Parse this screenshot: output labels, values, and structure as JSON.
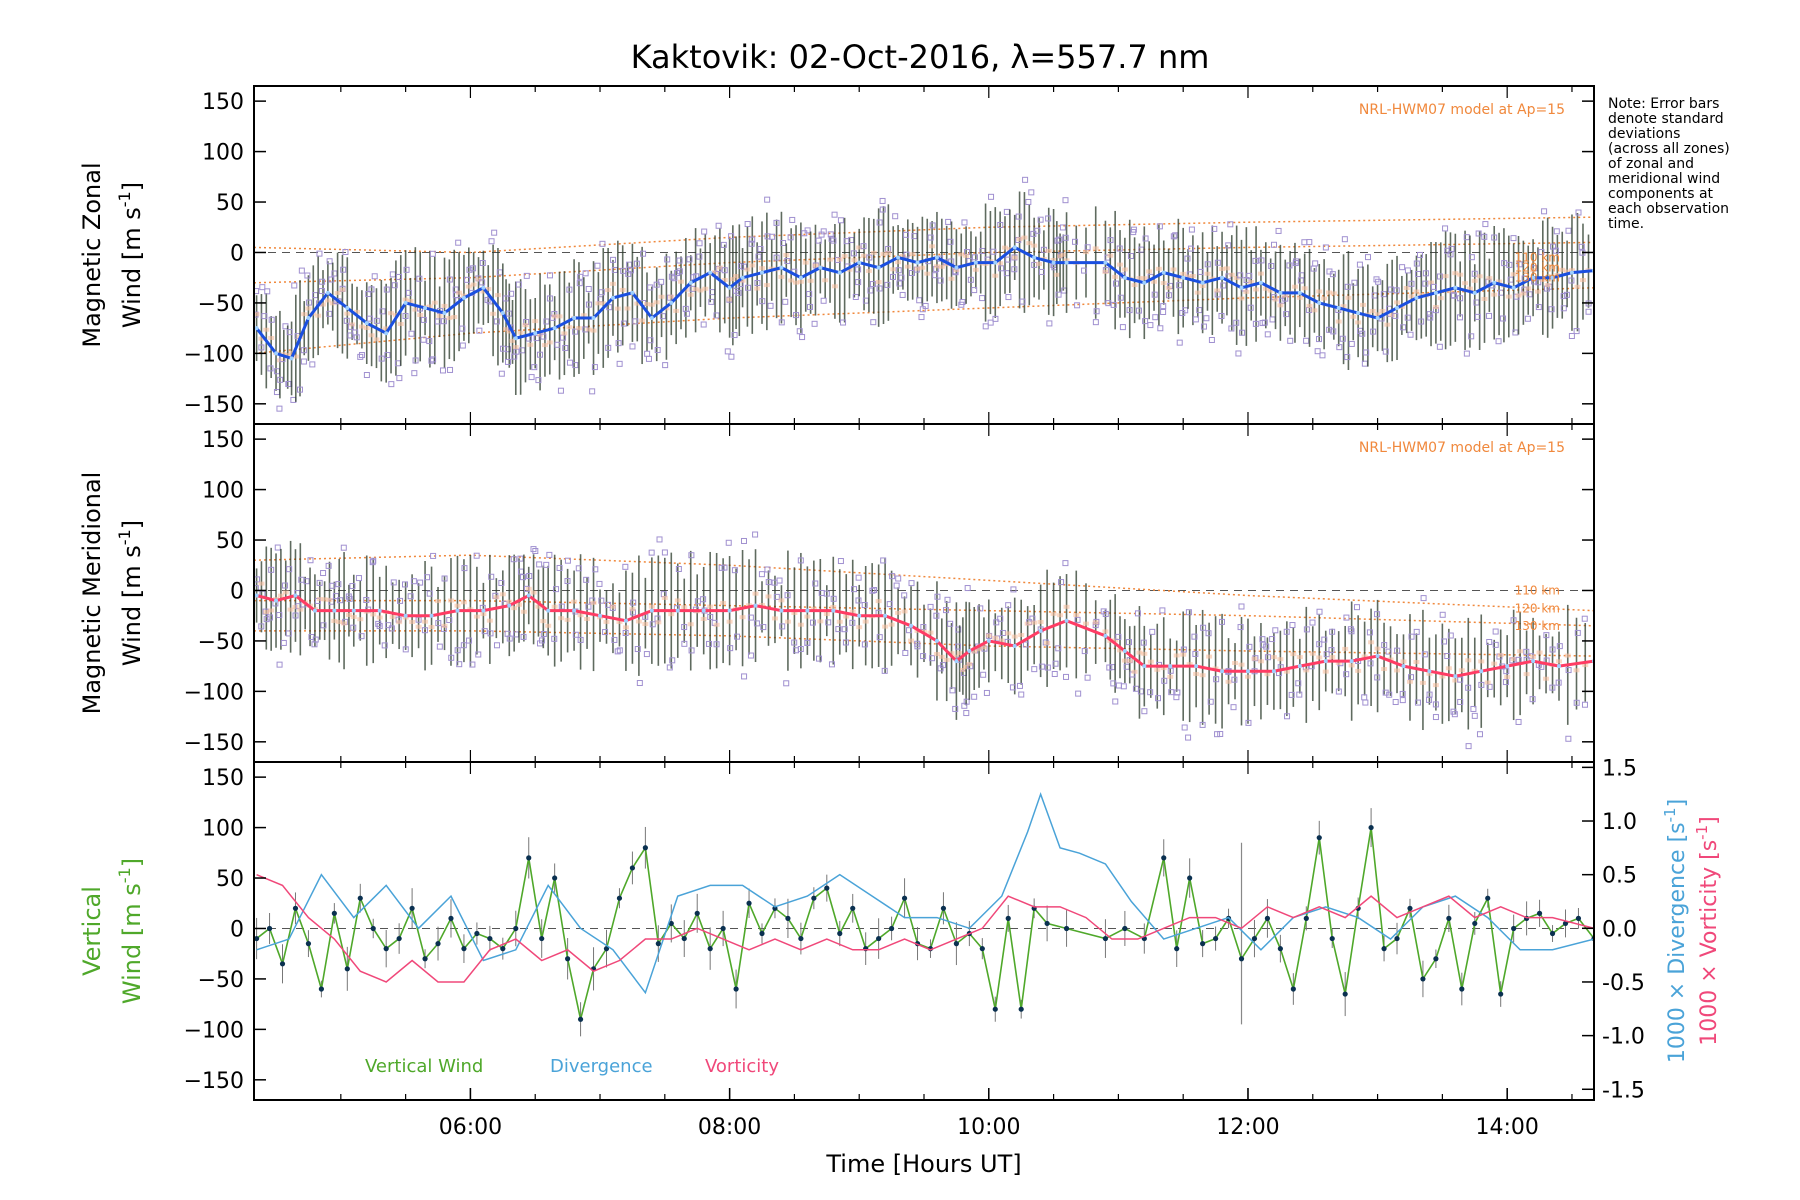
{
  "title": "Kaktovik: 02-Oct-2016, λ=557.7 nm",
  "note_lines": [
    "Note: Error bars",
    "denote standard",
    "deviations",
    "(across all zones)",
    "of zonal and",
    "meridional wind",
    "components at",
    "each observation",
    "time."
  ],
  "colors": {
    "zonal": "#1a4fe0",
    "meridional": "#ff3c64",
    "vertical": "#4fa82a",
    "divergence": "#4aa3d8",
    "vorticity": "#f0487a",
    "model": "#f0883c",
    "zone_points": "#a090d0",
    "error_bar": "#2a3a2a"
  },
  "chart_data": [
    {
      "type": "line",
      "name": "zonal-panel",
      "ylabel_line1": "Magnetic Zonal",
      "ylabel_line2": "Wind [m s",
      "ylabel_sup": "-1",
      "ylabel_end": "]",
      "xlim": [
        4.33,
        14.67
      ],
      "ylim": [
        -170,
        165
      ],
      "yticks": [
        -150,
        -100,
        -50,
        0,
        50,
        100,
        150
      ],
      "model_label": "NRL-HWM07 model at Ap=15",
      "model_alt_labels": [
        "110 km",
        "120 km",
        "130 km"
      ],
      "model_curves": [
        {
          "x": [
            4.33,
            6,
            8,
            10,
            12,
            14.67
          ],
          "y": [
            5,
            0,
            15,
            25,
            30,
            35
          ]
        },
        {
          "x": [
            4.33,
            6,
            8,
            10,
            12,
            14.67
          ],
          "y": [
            -30,
            -25,
            -10,
            0,
            5,
            10
          ]
        },
        {
          "x": [
            4.33,
            6,
            8,
            10,
            12,
            14.67
          ],
          "y": [
            -100,
            -80,
            -65,
            -55,
            -45,
            -35
          ]
        }
      ],
      "series": {
        "x": [
          4.35,
          4.5,
          4.62,
          4.75,
          4.9,
          5.05,
          5.2,
          5.35,
          5.5,
          5.65,
          5.8,
          5.95,
          6.1,
          6.25,
          6.35,
          6.5,
          6.65,
          6.8,
          6.95,
          7.1,
          7.25,
          7.4,
          7.55,
          7.7,
          7.85,
          8.0,
          8.1,
          8.25,
          8.4,
          8.55,
          8.7,
          8.85,
          9.0,
          9.15,
          9.3,
          9.45,
          9.6,
          9.75,
          9.9,
          10.05,
          10.2,
          10.35,
          10.5,
          10.6,
          10.9,
          11.05,
          11.2,
          11.35,
          11.5,
          11.65,
          11.8,
          11.95,
          12.1,
          12.25,
          12.4,
          12.55,
          12.7,
          12.85,
          13.0,
          13.15,
          13.3,
          13.45,
          13.6,
          13.75,
          13.9,
          14.05,
          14.2,
          14.35,
          14.5,
          14.67
        ],
        "y": [
          -75,
          -100,
          -105,
          -65,
          -40,
          -55,
          -70,
          -80,
          -50,
          -55,
          -60,
          -45,
          -35,
          -60,
          -85,
          -80,
          -75,
          -65,
          -65,
          -45,
          -40,
          -65,
          -50,
          -30,
          -20,
          -35,
          -25,
          -20,
          -15,
          -25,
          -15,
          -20,
          -10,
          -15,
          -5,
          -10,
          -5,
          -15,
          -10,
          -10,
          5,
          -5,
          -10,
          -10,
          -10,
          -25,
          -30,
          -20,
          -25,
          -30,
          -25,
          -35,
          -30,
          -40,
          -40,
          -50,
          -55,
          -60,
          -65,
          -55,
          -45,
          -40,
          -35,
          -40,
          -30,
          -35,
          -25,
          -25,
          -20,
          -18
        ]
      }
    },
    {
      "type": "line",
      "name": "meridional-panel",
      "ylabel_line1": "Magnetic Meridional",
      "ylabel_line2": "Wind [m s",
      "ylabel_sup": "-1",
      "ylabel_end": "]",
      "xlim": [
        4.33,
        14.67
      ],
      "ylim": [
        -170,
        165
      ],
      "yticks": [
        -150,
        -100,
        -50,
        0,
        50,
        100,
        150
      ],
      "model_label": "NRL-HWM07 model at Ap=15",
      "model_alt_labels": [
        "110 km",
        "120 km",
        "130 km"
      ],
      "model_curves": [
        {
          "x": [
            4.33,
            6,
            8,
            10,
            12,
            14.67
          ],
          "y": [
            30,
            35,
            25,
            10,
            -5,
            -20
          ]
        },
        {
          "x": [
            4.33,
            6,
            8,
            10,
            12,
            14.67
          ],
          "y": [
            -10,
            -10,
            -15,
            -20,
            -25,
            -35
          ]
        },
        {
          "x": [
            4.33,
            6,
            8,
            10,
            12,
            14.67
          ],
          "y": [
            -40,
            -40,
            -45,
            -55,
            -60,
            -65
          ]
        }
      ],
      "series": {
        "x": [
          4.35,
          4.5,
          4.65,
          4.8,
          4.95,
          5.1,
          5.3,
          5.5,
          5.7,
          5.9,
          6.1,
          6.3,
          6.45,
          6.6,
          6.8,
          7.0,
          7.2,
          7.4,
          7.6,
          7.8,
          8.0,
          8.2,
          8.4,
          8.6,
          8.8,
          9.0,
          9.2,
          9.4,
          9.6,
          9.75,
          9.85,
          10.0,
          10.2,
          10.4,
          10.6,
          10.9,
          11.05,
          11.2,
          11.4,
          11.6,
          11.8,
          12.0,
          12.2,
          12.4,
          12.6,
          12.8,
          13.0,
          13.2,
          13.4,
          13.6,
          13.8,
          14.0,
          14.2,
          14.4,
          14.67
        ],
        "y": [
          -5,
          -10,
          -5,
          -20,
          -20,
          -20,
          -20,
          -25,
          -25,
          -20,
          -20,
          -15,
          -5,
          -20,
          -20,
          -25,
          -30,
          -20,
          -20,
          -20,
          -20,
          -15,
          -20,
          -20,
          -20,
          -25,
          -25,
          -35,
          -50,
          -70,
          -60,
          -50,
          -55,
          -40,
          -30,
          -45,
          -60,
          -75,
          -75,
          -75,
          -80,
          -80,
          -80,
          -75,
          -70,
          -70,
          -65,
          -75,
          -80,
          -85,
          -80,
          -75,
          -70,
          -75,
          -70
        ]
      }
    },
    {
      "type": "line",
      "name": "vertical-panel",
      "ylabel_line1": "Vertical",
      "ylabel_line2": "Wind [m s",
      "ylabel_sup": "-1",
      "ylabel_end": "]",
      "y2label_div": "1000 × Divergence [s",
      "y2label_vor": "1000 × Vorticity [s",
      "y2label_sup": "-1",
      "y2label_end": "]",
      "xlim": [
        4.33,
        14.67
      ],
      "xlabel": "Time [Hours UT]",
      "xticks": [
        "06:00",
        "08:00",
        "10:00",
        "12:00",
        "14:00"
      ],
      "xtick_values": [
        6,
        8,
        10,
        12,
        14
      ],
      "ylim": [
        -170,
        165
      ],
      "yticks": [
        -150,
        -100,
        -50,
        0,
        50,
        100,
        150
      ],
      "y2lim": [
        -1.6,
        1.55
      ],
      "y2ticks": [
        "-1.5",
        "-1.0",
        "-0.5",
        "0.0",
        "0.5",
        "1.0",
        "1.5"
      ],
      "y2tick_values": [
        -1.5,
        -1.0,
        -0.5,
        0.0,
        0.5,
        1.0,
        1.5
      ],
      "legend": [
        "Vertical Wind",
        "Divergence",
        "Vorticity"
      ],
      "series": [
        {
          "key": "vertical",
          "x": [
            4.35,
            4.45,
            4.55,
            4.65,
            4.75,
            4.85,
            4.95,
            5.05,
            5.15,
            5.25,
            5.35,
            5.45,
            5.55,
            5.65,
            5.75,
            5.85,
            5.95,
            6.05,
            6.15,
            6.25,
            6.35,
            6.45,
            6.55,
            6.65,
            6.75,
            6.85,
            6.95,
            7.05,
            7.15,
            7.25,
            7.35,
            7.45,
            7.55,
            7.65,
            7.75,
            7.85,
            7.95,
            8.05,
            8.15,
            8.25,
            8.35,
            8.45,
            8.55,
            8.65,
            8.75,
            8.85,
            8.95,
            9.05,
            9.15,
            9.25,
            9.35,
            9.45,
            9.55,
            9.65,
            9.75,
            9.85,
            9.95,
            10.05,
            10.15,
            10.25,
            10.35,
            10.45,
            10.6,
            10.9,
            11.05,
            11.2,
            11.35,
            11.45,
            11.55,
            11.65,
            11.75,
            11.85,
            11.95,
            12.05,
            12.15,
            12.25,
            12.35,
            12.45,
            12.55,
            12.65,
            12.75,
            12.85,
            12.95,
            13.05,
            13.15,
            13.25,
            13.35,
            13.45,
            13.55,
            13.65,
            13.75,
            13.85,
            13.95,
            14.05,
            14.15,
            14.25,
            14.35,
            14.45,
            14.55,
            14.67
          ],
          "y": [
            -10,
            0,
            -35,
            20,
            -15,
            -60,
            15,
            -40,
            30,
            0,
            -20,
            -10,
            20,
            -30,
            -15,
            10,
            -20,
            -5,
            -10,
            -20,
            0,
            70,
            -10,
            50,
            -30,
            -90,
            -40,
            -20,
            30,
            60,
            80,
            -15,
            5,
            -10,
            15,
            -20,
            0,
            -60,
            25,
            -5,
            20,
            10,
            -10,
            30,
            40,
            -5,
            20,
            -20,
            -10,
            0,
            30,
            -15,
            -20,
            20,
            -15,
            -5,
            -20,
            -80,
            10,
            -80,
            20,
            5,
            0,
            -10,
            0,
            -10,
            70,
            -20,
            50,
            -15,
            -10,
            10,
            -30,
            -10,
            10,
            -20,
            -60,
            10,
            90,
            -10,
            -65,
            20,
            100,
            -20,
            -10,
            20,
            -50,
            -30,
            10,
            -60,
            5,
            30,
            -65,
            0,
            10,
            15,
            -5,
            5,
            10,
            -10
          ]
        },
        {
          "key": "divergence",
          "x": [
            4.35,
            4.6,
            4.85,
            5.1,
            5.35,
            5.6,
            5.85,
            6.1,
            6.35,
            6.6,
            6.85,
            7.1,
            7.35,
            7.6,
            7.85,
            8.1,
            8.35,
            8.6,
            8.85,
            9.1,
            9.35,
            9.6,
            9.85,
            10.1,
            10.3,
            10.4,
            10.55,
            10.7,
            10.9,
            11.1,
            11.35,
            11.6,
            11.85,
            12.1,
            12.35,
            12.6,
            12.85,
            13.1,
            13.35,
            13.6,
            13.85,
            14.1,
            14.35,
            14.67
          ],
          "y": [
            -0.2,
            -0.1,
            0.5,
            0.1,
            0.4,
            0.0,
            0.3,
            -0.3,
            -0.2,
            0.4,
            0.0,
            -0.2,
            -0.6,
            0.3,
            0.4,
            0.4,
            0.2,
            0.3,
            0.5,
            0.3,
            0.1,
            0.1,
            0.0,
            0.3,
            0.9,
            1.25,
            0.75,
            0.7,
            0.6,
            0.25,
            -0.1,
            0.0,
            0.1,
            -0.2,
            0.1,
            0.2,
            0.1,
            -0.1,
            0.2,
            0.3,
            0.1,
            -0.2,
            -0.2,
            -0.1
          ]
        },
        {
          "key": "vorticity",
          "x": [
            4.35,
            4.55,
            4.75,
            4.95,
            5.15,
            5.35,
            5.55,
            5.75,
            5.95,
            6.15,
            6.35,
            6.55,
            6.75,
            6.95,
            7.15,
            7.35,
            7.55,
            7.75,
            7.95,
            8.15,
            8.35,
            8.55,
            8.75,
            8.95,
            9.15,
            9.35,
            9.55,
            9.75,
            9.95,
            10.15,
            10.35,
            10.55,
            10.75,
            10.95,
            11.15,
            11.35,
            11.55,
            11.75,
            11.95,
            12.15,
            12.35,
            12.55,
            12.75,
            12.95,
            13.15,
            13.35,
            13.55,
            13.75,
            13.95,
            14.15,
            14.35,
            14.67
          ],
          "y": [
            0.5,
            0.4,
            0.1,
            -0.1,
            -0.4,
            -0.5,
            -0.3,
            -0.5,
            -0.5,
            -0.2,
            -0.1,
            -0.3,
            -0.2,
            -0.4,
            -0.3,
            -0.1,
            -0.1,
            0.0,
            -0.1,
            -0.2,
            -0.1,
            -0.2,
            -0.1,
            -0.2,
            -0.2,
            -0.1,
            -0.2,
            -0.1,
            0.0,
            0.3,
            0.2,
            0.2,
            0.1,
            -0.1,
            -0.1,
            0.0,
            0.1,
            0.1,
            0.0,
            0.2,
            0.1,
            0.2,
            0.1,
            0.3,
            0.1,
            0.2,
            0.3,
            0.1,
            0.2,
            0.1,
            0.1,
            0.0
          ]
        }
      ]
    }
  ]
}
